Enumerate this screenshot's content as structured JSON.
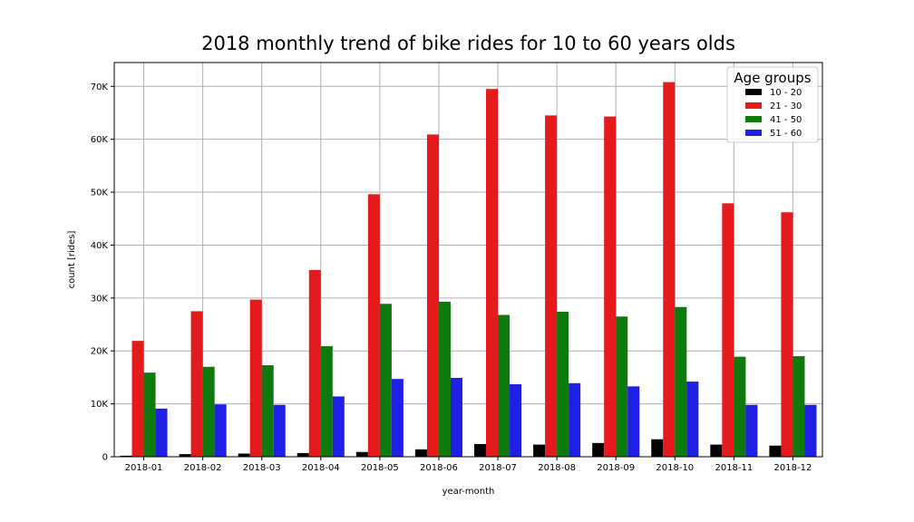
{
  "chart_data": {
    "type": "bar",
    "title": "2018 monthly trend of bike rides for 10 to 60 years olds",
    "xlabel": "year-month",
    "ylabel": "count [rides]",
    "ylim": [
      0,
      74500
    ],
    "yticks": [
      0,
      10000,
      20000,
      30000,
      40000,
      50000,
      60000,
      70000
    ],
    "ytick_labels": [
      "0",
      "10K",
      "20K",
      "30K",
      "40K",
      "50K",
      "60K",
      "70K"
    ],
    "grid": true,
    "legend": {
      "title": "Age groups",
      "placement": "top-right"
    },
    "categories": [
      "2018-01",
      "2018-02",
      "2018-03",
      "2018-04",
      "2018-05",
      "2018-06",
      "2018-07",
      "2018-08",
      "2018-09",
      "2018-10",
      "2018-11",
      "2018-12"
    ],
    "series": [
      {
        "name": "10 - 20",
        "color": "#000000",
        "values": [
          200,
          500,
          600,
          700,
          900,
          1400,
          2400,
          2300,
          2600,
          3300,
          2300,
          2100
        ]
      },
      {
        "name": "21 - 30",
        "color": "#e41a1c",
        "values": [
          21900,
          27500,
          29700,
          35300,
          49600,
          60900,
          69500,
          64500,
          64300,
          70800,
          47900,
          46200
        ]
      },
      {
        "name": "41 - 50",
        "color": "#0e7a0d",
        "values": [
          15900,
          17000,
          17300,
          20900,
          28900,
          29300,
          26800,
          27400,
          26500,
          28300,
          18900,
          19000
        ]
      },
      {
        "name": "51 - 60",
        "color": "#1f1fe6",
        "values": [
          9100,
          9900,
          9800,
          11400,
          14700,
          14900,
          13700,
          13900,
          13300,
          14200,
          9800,
          9800
        ]
      }
    ]
  }
}
